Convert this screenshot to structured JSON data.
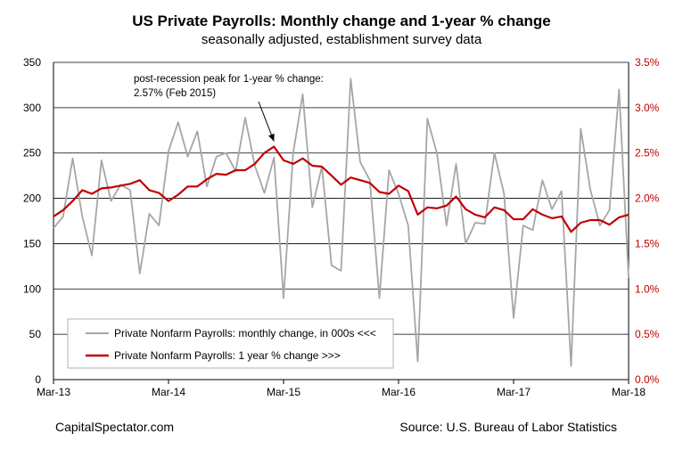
{
  "chart_data": {
    "type": "line",
    "title": "US Private Payrolls: Monthly change and 1-year % change",
    "subtitle": "seasonally adjusted, establishment survey data",
    "x_tick_labels": [
      "Mar-13",
      "Mar-14",
      "Mar-15",
      "Mar-16",
      "Mar-17",
      "Mar-18"
    ],
    "x": [
      "Mar-13",
      "Apr-13",
      "May-13",
      "Jun-13",
      "Jul-13",
      "Aug-13",
      "Sep-13",
      "Oct-13",
      "Nov-13",
      "Dec-13",
      "Jan-14",
      "Feb-14",
      "Mar-14",
      "Apr-14",
      "May-14",
      "Jun-14",
      "Jul-14",
      "Aug-14",
      "Sep-14",
      "Oct-14",
      "Nov-14",
      "Dec-14",
      "Jan-15",
      "Feb-15",
      "Mar-15",
      "Apr-15",
      "May-15",
      "Jun-15",
      "Jul-15",
      "Aug-15",
      "Sep-15",
      "Oct-15",
      "Nov-15",
      "Dec-15",
      "Jan-16",
      "Feb-16",
      "Mar-16",
      "Apr-16",
      "May-16",
      "Jun-16",
      "Jul-16",
      "Aug-16",
      "Sep-16",
      "Oct-16",
      "Nov-16",
      "Dec-16",
      "Jan-17",
      "Feb-17",
      "Mar-17",
      "Apr-17",
      "May-17",
      "Jun-17",
      "Jul-17",
      "Aug-17",
      "Sep-17",
      "Oct-17",
      "Nov-17",
      "Dec-17",
      "Jan-18",
      "Feb-18",
      "Mar-18"
    ],
    "left_axis": {
      "ylim": [
        0,
        350
      ],
      "ticks": [
        "0",
        "50",
        "100",
        "150",
        "200",
        "250",
        "300",
        "350"
      ]
    },
    "right_axis": {
      "ylim": [
        0,
        3.5
      ],
      "ticks": [
        "0.0%",
        "0.5%",
        "1.0%",
        "1.5%",
        "2.0%",
        "2.5%",
        "3.0%",
        "3.5%"
      ]
    },
    "grid": "horizontal",
    "legend_position": "bottom-left",
    "series": [
      {
        "name": "Private Nonfarm Payrolls: monthly change, in 000s <<<",
        "axis": "left",
        "color": "#a6a6a6",
        "values": [
          167,
          180,
          244,
          180,
          137,
          242,
          197,
          215,
          209,
          117,
          183,
          170,
          252,
          284,
          246,
          274,
          213,
          246,
          250,
          230,
          289,
          236,
          206,
          245,
          90,
          250,
          315,
          190,
          235,
          126,
          120,
          332,
          240,
          220,
          90,
          231,
          205,
          170,
          20,
          288,
          250,
          170,
          238,
          150,
          173,
          172,
          250,
          205,
          68,
          170,
          165,
          220,
          188,
          208,
          15,
          277,
          210,
          170,
          187,
          320,
          112
        ]
      },
      {
        "name": "Private Nonfarm Payrolls:  1 year % change >>>",
        "axis": "right",
        "color": "#c00000",
        "values": [
          1.8,
          1.87,
          1.97,
          2.09,
          2.05,
          2.11,
          2.12,
          2.14,
          2.16,
          2.2,
          2.09,
          2.06,
          1.97,
          2.04,
          2.13,
          2.13,
          2.21,
          2.27,
          2.26,
          2.31,
          2.31,
          2.38,
          2.5,
          2.57,
          2.42,
          2.38,
          2.44,
          2.36,
          2.35,
          2.25,
          2.15,
          2.23,
          2.2,
          2.17,
          2.07,
          2.05,
          2.14,
          2.08,
          1.82,
          1.9,
          1.89,
          1.92,
          2.02,
          1.88,
          1.82,
          1.79,
          1.9,
          1.87,
          1.77,
          1.77,
          1.88,
          1.82,
          1.78,
          1.8,
          1.63,
          1.73,
          1.76,
          1.76,
          1.71,
          1.79,
          1.82
        ]
      }
    ],
    "annotation": {
      "text_line1": "post-recession peak for 1-year % change:",
      "text_line2": "2.57% (Feb 2015)",
      "target_index": 23
    }
  },
  "footer": {
    "credit_left": "CapitalSpectator.com",
    "credit_right": "Source: U.S. Bureau of Labor Statistics"
  }
}
